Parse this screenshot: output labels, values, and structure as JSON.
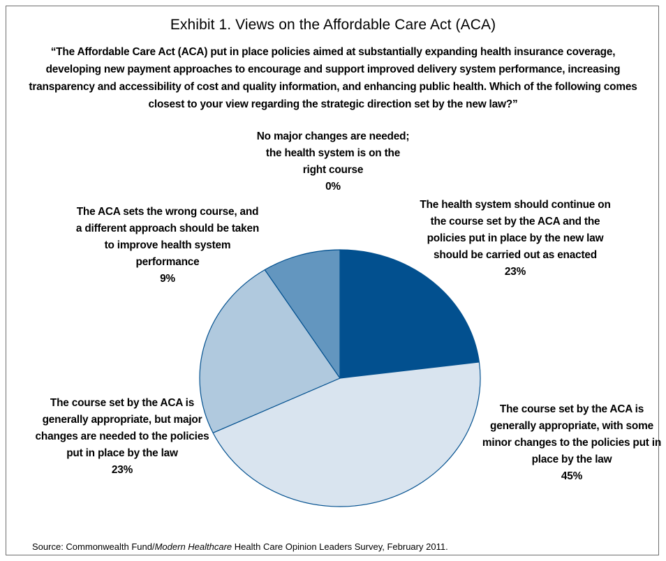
{
  "title": "Exhibit 1. Views on the Affordable Care Act (ACA)",
  "question": "“The Affordable Care Act (ACA) put in place policies aimed at substantially expanding health insurance coverage, developing new payment approaches to encourage and support improved delivery system performance, increasing transparency and accessibility of cost and quality information, and enhancing public health. Which of the following comes closest to your view regarding the strategic direction set by the new law?”",
  "source": {
    "prefix": "Source: Commonwealth Fund/",
    "italic": "Modern Healthcare",
    "suffix": " Health Care Opinion Leaders Survey, February 2011."
  },
  "chart_data": {
    "type": "pie",
    "title": "Exhibit 1. Views on the Affordable Care Act (ACA)",
    "slices": [
      {
        "label": "No major changes are needed; the health system is on the right course",
        "value": 0,
        "display": "0%",
        "color": "#ffffff"
      },
      {
        "label": "The health system should continue on the course set by the ACA and the policies put in place by the new law should be carried out as enacted",
        "value": 23,
        "display": "23%",
        "color": "#02508f"
      },
      {
        "label": "The course set by the ACA is generally appropriate, with some minor changes to the policies put in place by the law",
        "value": 45,
        "display": "45%",
        "color": "#d9e4ef"
      },
      {
        "label": "The course set by the ACA is generally appropriate, but major changes are needed to the policies put in place by the law",
        "value": 23,
        "display": "23%",
        "color": "#b0c9de"
      },
      {
        "label": "The ACA sets the wrong course, and a different approach should be taken to improve health system performance",
        "value": 9,
        "display": "9%",
        "color": "#6396bf"
      }
    ],
    "edge_color": "#02508f"
  }
}
